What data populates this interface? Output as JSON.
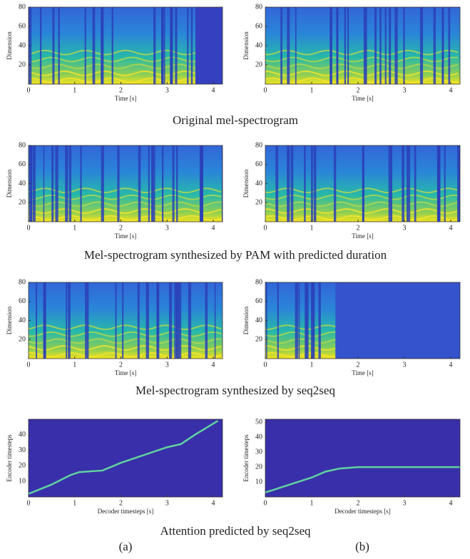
{
  "chart_data": [
    {
      "type": "spectrogram",
      "xlabel": "Time [s]",
      "ylabel": "Dimension",
      "xlim": [
        0,
        4.2
      ],
      "xticks": [
        0,
        1,
        2,
        3,
        4
      ],
      "ylim": [
        0,
        80
      ],
      "yticks": [
        20,
        40,
        60,
        80
      ]
    },
    {
      "type": "spectrogram",
      "xlabel": "Time [s]",
      "ylabel": "Dimension",
      "xlim": [
        0,
        4.2
      ],
      "xticks": [
        0,
        1,
        2,
        3,
        4
      ],
      "ylim": [
        0,
        80
      ],
      "yticks": [
        20,
        40,
        60,
        80
      ]
    },
    {
      "type": "spectrogram",
      "xlabel": "Time [s]",
      "ylabel": "Dimension",
      "xlim": [
        0,
        4.2
      ],
      "xticks": [
        0,
        1,
        2,
        3,
        4
      ],
      "ylim": [
        0,
        80
      ],
      "yticks": [
        20,
        40,
        60,
        80
      ]
    },
    {
      "type": "spectrogram",
      "xlabel": "Time [s]",
      "ylabel": "Dimension",
      "xlim": [
        0,
        4.2
      ],
      "xticks": [
        0,
        1,
        2,
        3,
        4
      ],
      "ylim": [
        0,
        80
      ],
      "yticks": [
        20,
        40,
        60,
        80
      ]
    },
    {
      "type": "spectrogram",
      "xlabel": "Time [s]",
      "ylabel": "Dimension",
      "xlim": [
        0,
        4.2
      ],
      "xticks": [
        0,
        1,
        2,
        3,
        4
      ],
      "ylim": [
        0,
        80
      ],
      "yticks": [
        20,
        40,
        60,
        80
      ]
    },
    {
      "type": "spectrogram",
      "xlabel": "Time [s]",
      "ylabel": "Dimension",
      "xlim": [
        0,
        4.2
      ],
      "xticks": [
        0,
        1,
        2,
        3,
        4
      ],
      "ylim": [
        0,
        80
      ],
      "yticks": [
        20,
        40,
        60,
        80
      ]
    },
    {
      "type": "line",
      "xlabel": "Decoder timesteps [s]",
      "ylabel": "Encoder timesteps",
      "xlim": [
        0,
        4.2
      ],
      "xticks": [
        0,
        1,
        2,
        3,
        4
      ],
      "ylim": [
        0,
        50
      ],
      "yticks": [
        10,
        20,
        30,
        40
      ],
      "series": [
        {
          "color": "#5fd3a0",
          "x": [
            0,
            0.5,
            0.9,
            1.1,
            1.6,
            2,
            2.5,
            3,
            3.3,
            3.6,
            4.1
          ],
          "values": [
            2,
            8,
            14,
            16,
            17,
            22,
            27,
            32,
            34,
            40,
            49
          ]
        }
      ]
    },
    {
      "type": "line",
      "xlabel": "Decoder timesteps [s]",
      "ylabel": "Encoder timesteps",
      "xlim": [
        0,
        4.2
      ],
      "xticks": [
        0,
        1,
        2,
        3,
        4
      ],
      "ylim": [
        0,
        52
      ],
      "yticks": [
        10,
        20,
        30,
        40,
        50
      ],
      "series": [
        {
          "color": "#5fd3a0",
          "x": [
            0,
            0.5,
            1,
            1.3,
            1.6,
            2,
            3,
            4.2
          ],
          "values": [
            3,
            8,
            13,
            17,
            19,
            20,
            20,
            20
          ]
        }
      ]
    }
  ],
  "captions": [
    "Original mel-spectrogram",
    "Mel-spectrogram synthesized by PAM with predicted duration",
    "Mel-spectrogram synthesized by seq2seq",
    "Attention predicted by seq2seq"
  ],
  "column_labels": [
    "(a)",
    "(b)"
  ]
}
